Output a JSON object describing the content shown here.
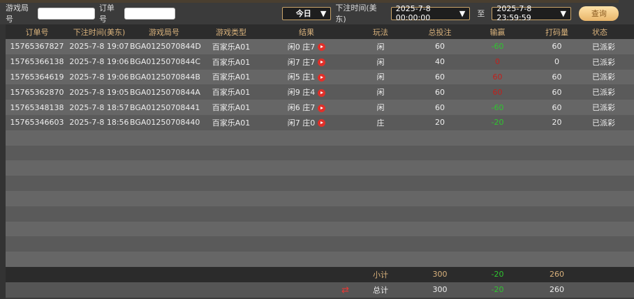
{
  "filter": {
    "round_label": "游戏局号",
    "round_value": "",
    "order_label": "订单号",
    "order_value": "",
    "period_selected": "今日",
    "time_label": "下注时间(美东)",
    "start_time": "2025-7-8 00:00:00",
    "to_label": "至",
    "end_time": "2025-7-8 23:59:59",
    "query_label": "查询"
  },
  "table": {
    "headers": [
      "订单号",
      "下注时间(美东)",
      "游戏局号",
      "游戏类型",
      "结果",
      "玩法",
      "总投注",
      "输赢",
      "打码量",
      "状态"
    ],
    "rows": [
      {
        "order": "15765367827",
        "time": "2025-7-8 19:07",
        "round": "BGA0125070844D",
        "type": "百家乐A01",
        "result": "闲0 庄7",
        "bet_on": "闲",
        "bet": "60",
        "win": "-60",
        "win_color": "green",
        "turnover": "60",
        "status": "已派彩"
      },
      {
        "order": "15765366138",
        "time": "2025-7-8 19:06",
        "round": "BGA0125070844C",
        "type": "百家乐A01",
        "result": "闲7 庄7",
        "bet_on": "闲",
        "bet": "40",
        "win": "0",
        "win_color": "red",
        "turnover": "0",
        "status": "已派彩"
      },
      {
        "order": "15765364619",
        "time": "2025-7-8 19:06",
        "round": "BGA0125070844B",
        "type": "百家乐A01",
        "result": "闲5 庄1",
        "bet_on": "闲",
        "bet": "60",
        "win": "60",
        "win_color": "red",
        "turnover": "60",
        "status": "已派彩"
      },
      {
        "order": "15765362870",
        "time": "2025-7-8 19:05",
        "round": "BGA0125070844A",
        "type": "百家乐A01",
        "result": "闲9 庄4",
        "bet_on": "闲",
        "bet": "60",
        "win": "60",
        "win_color": "red",
        "turnover": "60",
        "status": "已派彩"
      },
      {
        "order": "15765348138",
        "time": "2025-7-8 18:57",
        "round": "BGA01250708441",
        "type": "百家乐A01",
        "result": "闲6 庄7",
        "bet_on": "闲",
        "bet": "60",
        "win": "-60",
        "win_color": "green",
        "turnover": "60",
        "status": "已派彩"
      },
      {
        "order": "15765346603",
        "time": "2025-7-8 18:56",
        "round": "BGA01250708440",
        "type": "百家乐A01",
        "result": "闲7 庄0",
        "bet_on": "庄",
        "bet": "20",
        "win": "-20",
        "win_color": "green",
        "turnover": "20",
        "status": "已派彩"
      }
    ],
    "subtotal": {
      "label": "小计",
      "bet": "300",
      "win": "-20",
      "turnover": "260"
    },
    "total": {
      "label": "总计",
      "bet": "300",
      "win": "-20",
      "turnover": "260"
    }
  },
  "colors": {
    "accent": "#d9b27c",
    "win_green": "#2fc52f",
    "loss_red": "#c0201c"
  }
}
